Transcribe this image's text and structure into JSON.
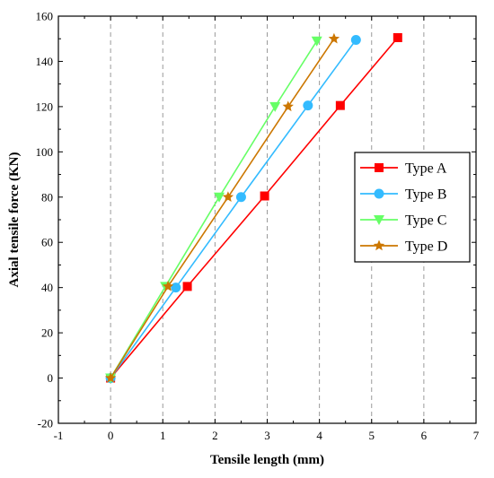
{
  "chart_data": {
    "type": "line",
    "title": "",
    "xlabel": "Tensile length (mm)",
    "ylabel": "Axial tensile force (KN)",
    "xlim": [
      -1,
      7
    ],
    "ylim": [
      -20,
      160
    ],
    "x_ticks": [
      "-1",
      "0",
      "1",
      "2",
      "3",
      "4",
      "5",
      "6",
      "7"
    ],
    "y_ticks": [
      "-20",
      "0",
      "20",
      "40",
      "60",
      "80",
      "100",
      "120",
      "140",
      "160"
    ],
    "x_grid": true,
    "y_grid": false,
    "legend_position": "right",
    "series": [
      {
        "name": "Type A",
        "color": "#ff0000",
        "marker": "square",
        "x": [
          0,
          1.47,
          2.95,
          4.4,
          5.5
        ],
        "y": [
          0,
          40.5,
          80.5,
          120.5,
          150.5
        ]
      },
      {
        "name": "Type B",
        "color": "#33bbff",
        "marker": "circle",
        "x": [
          0,
          1.25,
          2.5,
          3.78,
          4.7
        ],
        "y": [
          0,
          40,
          80,
          120.5,
          149.5
        ]
      },
      {
        "name": "Type C",
        "color": "#66ff66",
        "marker": "triangle-down",
        "x": [
          0,
          1.05,
          2.08,
          3.15,
          3.95
        ],
        "y": [
          0,
          40.5,
          80,
          120,
          149
        ]
      },
      {
        "name": "Type D",
        "color": "#cc7700",
        "marker": "star",
        "x": [
          0,
          1.1,
          2.25,
          3.4,
          4.28
        ],
        "y": [
          0,
          40.5,
          80,
          120,
          150
        ]
      }
    ]
  }
}
